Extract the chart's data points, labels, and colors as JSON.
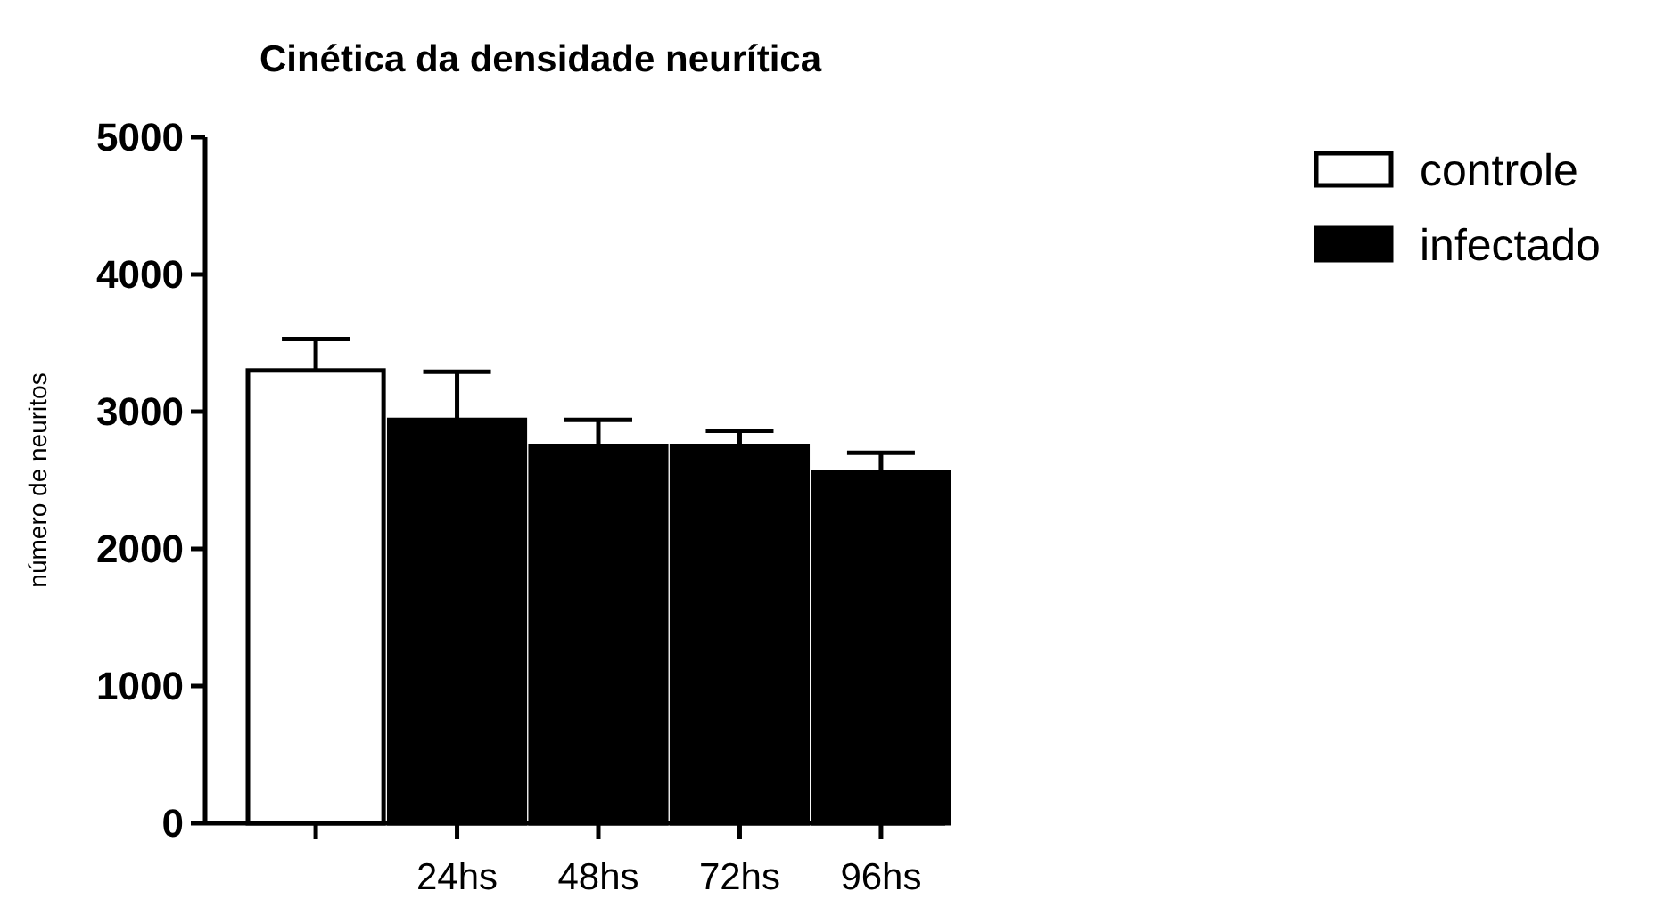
{
  "chart_data": {
    "type": "bar",
    "title": "Cinética da densidade neurítica",
    "ylabel": "número de neuritos",
    "categories": [
      null,
      "24hs",
      "48hs",
      "72hs",
      "96hs"
    ],
    "series": [
      {
        "name": "controle",
        "color": "#ffffff",
        "values": [
          3300,
          null,
          null,
          null,
          null
        ],
        "errors": [
          [
            3300,
            3530
          ],
          null,
          null,
          null,
          null
        ]
      },
      {
        "name": "infectado",
        "color": "#000000",
        "values": [
          null,
          2940,
          2750,
          2750,
          2560
        ],
        "errors": [
          null,
          [
            2940,
            3290
          ],
          [
            2750,
            2940
          ],
          [
            2750,
            2860
          ],
          [
            2560,
            2700
          ]
        ]
      }
    ],
    "ylim": [
      0,
      5000
    ],
    "yticks": [
      0,
      1000,
      2000,
      3000,
      4000,
      5000
    ],
    "legend": "top right",
    "grid": false
  }
}
